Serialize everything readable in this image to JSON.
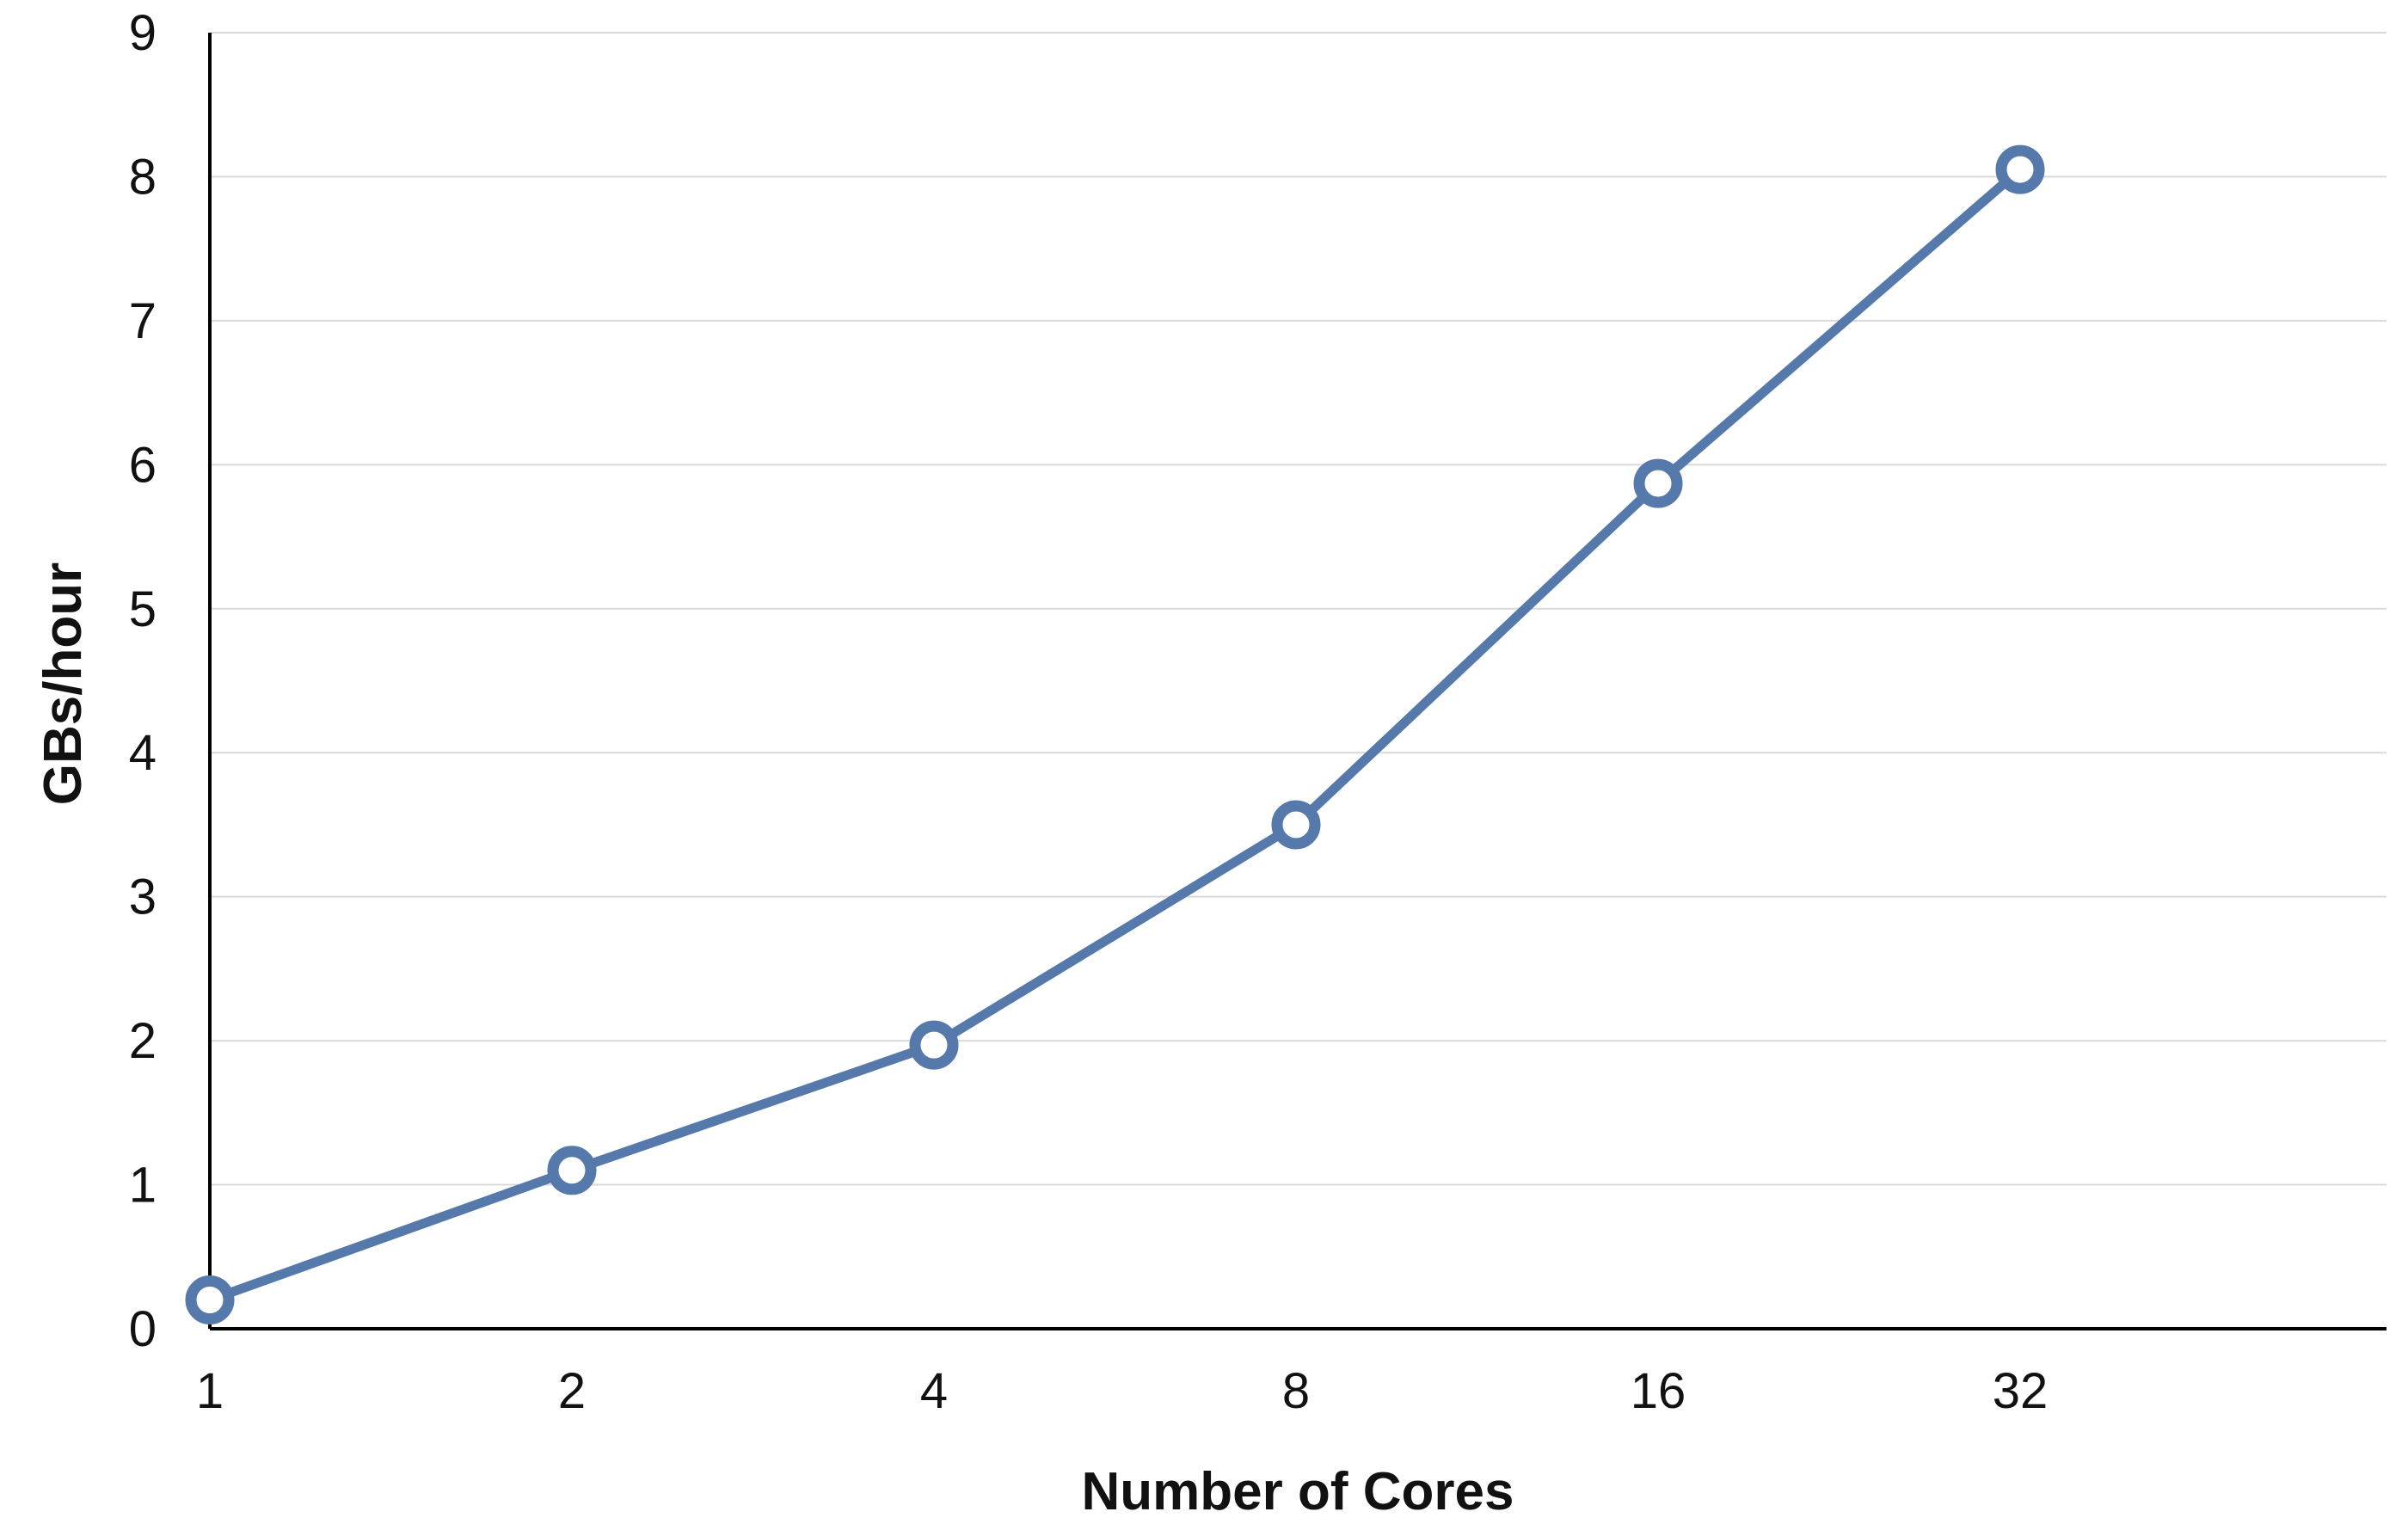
{
  "chart_data": {
    "type": "line",
    "title": "",
    "xlabel": "Number of Cores",
    "ylabel": "GBs/hour",
    "categories": [
      "1",
      "2",
      "4",
      "8",
      "16",
      "32"
    ],
    "series": [
      {
        "values": [
          0.2,
          1.1,
          1.97,
          3.5,
          5.87,
          8.05
        ],
        "color": "#5479aa"
      }
    ],
    "ylim": [
      0,
      9
    ],
    "yticks": [
      "0",
      "1",
      "2",
      "3",
      "4",
      "5",
      "6",
      "7",
      "8",
      "9"
    ],
    "grid": true,
    "legend": "none",
    "marker": "hollow-circle"
  }
}
